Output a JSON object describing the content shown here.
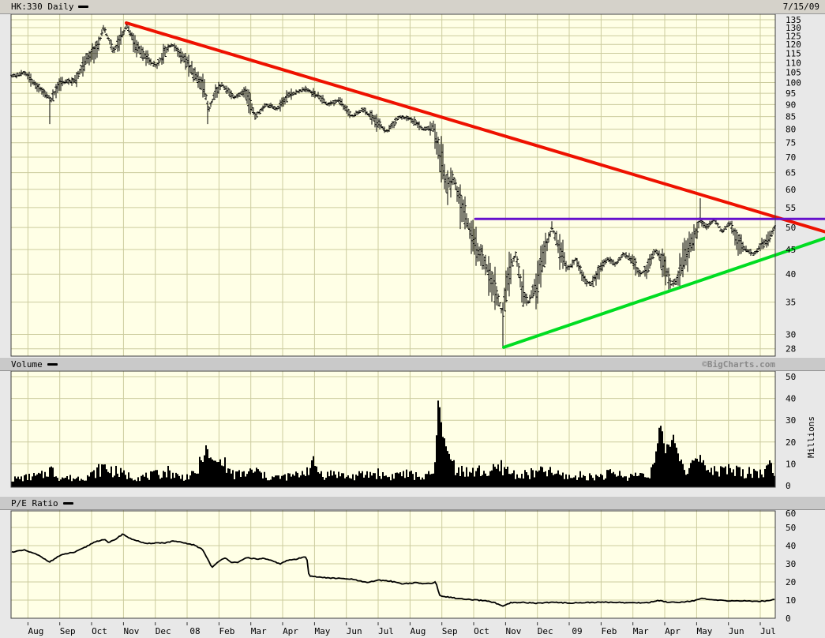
{
  "titlebar": {
    "symbol": "HK:330 Daily",
    "date": "7/15/09"
  },
  "volume_header": {
    "label": "Volume",
    "credit": "©BigCharts.com"
  },
  "pe_header": {
    "label": "P/E Ratio"
  },
  "axis": {
    "months": [
      "Aug",
      "Sep",
      "Oct",
      "Nov",
      "Dec",
      "08",
      "Feb",
      "Mar",
      "Apr",
      "May",
      "Jun",
      "Jul",
      "Aug",
      "Sep",
      "Oct",
      "Nov",
      "Dec",
      "09",
      "Feb",
      "Mar",
      "Apr",
      "May",
      "Jun",
      "Jul"
    ],
    "month_grid_offset": 0.53,
    "x_range_months": 24
  },
  "colors": {
    "background": "#e8e8e8",
    "plot_bg": "#ffffe6",
    "grid": "#cccc9e",
    "border": "#3f3f3f",
    "bar_black": "#000000",
    "trend_red": "#ee1100",
    "trend_green": "#00dd22",
    "trend_purple": "#6611cc",
    "credit_gray": "#8a8a8a",
    "header_bg": "#c9c9c9",
    "titlebar_bg": "#d5d2ca"
  },
  "chart_data": [
    {
      "type": "ohlc",
      "name": "price",
      "title": "HK:330 Daily",
      "yscale": "log",
      "ylim": [
        27,
        135
      ],
      "yticks": [
        135,
        130,
        125,
        120,
        115,
        110,
        105,
        100,
        95,
        90,
        85,
        80,
        75,
        70,
        65,
        60,
        55,
        50,
        45,
        40,
        35,
        30,
        28
      ],
      "close_anchors": [
        [
          0,
          103
        ],
        [
          0.4,
          105
        ],
        [
          0.8,
          98
        ],
        [
          1.1,
          94
        ],
        [
          1.25,
          92
        ],
        [
          1.5,
          100
        ],
        [
          2.0,
          101
        ],
        [
          2.4,
          113
        ],
        [
          2.7,
          118
        ],
        [
          2.88,
          130
        ],
        [
          3.2,
          116
        ],
        [
          3.45,
          125
        ],
        [
          3.62,
          131
        ],
        [
          3.9,
          120
        ],
        [
          4.25,
          112
        ],
        [
          4.55,
          108
        ],
        [
          4.9,
          118
        ],
        [
          5.05,
          120
        ],
        [
          5.4,
          112
        ],
        [
          5.75,
          104
        ],
        [
          6.05,
          97
        ],
        [
          6.2,
          88
        ],
        [
          6.4,
          95
        ],
        [
          6.6,
          99
        ],
        [
          7.0,
          93
        ],
        [
          7.35,
          96
        ],
        [
          7.66,
          85
        ],
        [
          8.0,
          90
        ],
        [
          8.35,
          88
        ],
        [
          8.7,
          94
        ],
        [
          9.25,
          97
        ],
        [
          9.6,
          94
        ],
        [
          9.95,
          90
        ],
        [
          10.3,
          92
        ],
        [
          10.7,
          85
        ],
        [
          11.05,
          88
        ],
        [
          11.45,
          83
        ],
        [
          11.8,
          79
        ],
        [
          12.2,
          85
        ],
        [
          12.55,
          84
        ],
        [
          12.95,
          80
        ],
        [
          13.25,
          81
        ],
        [
          13.5,
          70
        ],
        [
          13.7,
          61
        ],
        [
          13.9,
          63
        ],
        [
          14.15,
          55
        ],
        [
          14.4,
          50
        ],
        [
          14.65,
          45
        ],
        [
          14.9,
          42
        ],
        [
          15.15,
          38
        ],
        [
          15.45,
          33
        ],
        [
          15.65,
          40
        ],
        [
          15.85,
          44
        ],
        [
          16.05,
          37
        ],
        [
          16.25,
          35
        ],
        [
          16.5,
          38
        ],
        [
          16.75,
          44
        ],
        [
          17.0,
          50
        ],
        [
          17.25,
          45
        ],
        [
          17.5,
          41
        ],
        [
          17.75,
          43
        ],
        [
          18.0,
          39
        ],
        [
          18.25,
          38
        ],
        [
          18.5,
          41
        ],
        [
          18.75,
          43
        ],
        [
          19.0,
          42
        ],
        [
          19.25,
          44
        ],
        [
          19.5,
          43
        ],
        [
          19.75,
          40
        ],
        [
          20.0,
          41
        ],
        [
          20.25,
          45
        ],
        [
          20.5,
          42
        ],
        [
          20.75,
          38
        ],
        [
          20.95,
          39
        ],
        [
          21.2,
          44
        ],
        [
          21.5,
          48
        ],
        [
          21.65,
          52
        ],
        [
          21.85,
          50
        ],
        [
          22.1,
          52
        ],
        [
          22.35,
          49
        ],
        [
          22.6,
          51
        ],
        [
          22.85,
          47
        ],
        [
          23.1,
          45
        ],
        [
          23.35,
          44
        ],
        [
          23.6,
          46
        ],
        [
          23.8,
          47
        ],
        [
          24.0,
          50
        ]
      ],
      "spikes": [
        {
          "t": 1.19,
          "low": 82
        },
        {
          "t": 6.18,
          "low": 82
        },
        {
          "t": 15.45,
          "low": 28.3
        },
        {
          "t": 17.0,
          "high": 51.5
        },
        {
          "t": 21.65,
          "high": 57.5
        }
      ],
      "trendlines": [
        {
          "name": "descending-resistance",
          "color": "trend_red",
          "width": 4,
          "points": [
            [
              3.62,
              133
            ],
            [
              25.56,
              49
            ]
          ]
        },
        {
          "name": "ascending-support",
          "color": "trend_green",
          "width": 4,
          "points": [
            [
              15.47,
              28.2
            ],
            [
              25.56,
              47.5
            ]
          ]
        },
        {
          "name": "horizontal-resistance",
          "color": "trend_purple",
          "width": 3,
          "points": [
            [
              14.58,
              52.1
            ],
            [
              25.56,
              52.1
            ]
          ]
        }
      ]
    },
    {
      "type": "bar",
      "name": "volume",
      "ylabel": "Millions",
      "yticks": [
        0,
        10,
        20,
        30,
        40,
        50
      ],
      "samples": [
        [
          0,
          3
        ],
        [
          0.5,
          4
        ],
        [
          1.0,
          5
        ],
        [
          1.2,
          8
        ],
        [
          1.5,
          4
        ],
        [
          2,
          3.5
        ],
        [
          2.5,
          5
        ],
        [
          2.9,
          9
        ],
        [
          3.2,
          7
        ],
        [
          3.6,
          5
        ],
        [
          4,
          4
        ],
        [
          4.5,
          5
        ],
        [
          4.9,
          7
        ],
        [
          5.3,
          4
        ],
        [
          5.75,
          5
        ],
        [
          6.0,
          12
        ],
        [
          6.1,
          17
        ],
        [
          6.3,
          11
        ],
        [
          6.6,
          11
        ],
        [
          7,
          5
        ],
        [
          7.4,
          6
        ],
        [
          7.7,
          7
        ],
        [
          8,
          4
        ],
        [
          8.5,
          4
        ],
        [
          9,
          5
        ],
        [
          9.5,
          10
        ],
        [
          9.8,
          5
        ],
        [
          10.2,
          6
        ],
        [
          10.6,
          4
        ],
        [
          11,
          5
        ],
        [
          11.5,
          6
        ],
        [
          11.9,
          4
        ],
        [
          12.2,
          6
        ],
        [
          12.6,
          5
        ],
        [
          13,
          4
        ],
        [
          13.3,
          6
        ],
        [
          13.45,
          43
        ],
        [
          13.6,
          20
        ],
        [
          13.75,
          14
        ],
        [
          13.9,
          10
        ],
        [
          14.1,
          8
        ],
        [
          14.4,
          6
        ],
        [
          14.7,
          7
        ],
        [
          15,
          6
        ],
        [
          15.45,
          9
        ],
        [
          15.7,
          6
        ],
        [
          16,
          5
        ],
        [
          16.5,
          6
        ],
        [
          16.8,
          7
        ],
        [
          17,
          6
        ],
        [
          17.3,
          5
        ],
        [
          17.6,
          4
        ],
        [
          18,
          5
        ],
        [
          18.3,
          4
        ],
        [
          18.6,
          5
        ],
        [
          19,
          6
        ],
        [
          19.3,
          4
        ],
        [
          19.6,
          5
        ],
        [
          20,
          6
        ],
        [
          20.2,
          8
        ],
        [
          20.4,
          28
        ],
        [
          20.55,
          15
        ],
        [
          20.7,
          20
        ],
        [
          20.85,
          22
        ],
        [
          21,
          13
        ],
        [
          21.2,
          8
        ],
        [
          21.4,
          10
        ],
        [
          21.65,
          13
        ],
        [
          21.9,
          8
        ],
        [
          22.1,
          9
        ],
        [
          22.4,
          7
        ],
        [
          22.7,
          8
        ],
        [
          23,
          6
        ],
        [
          23.3,
          7
        ],
        [
          23.6,
          6
        ],
        [
          23.85,
          9
        ],
        [
          24,
          8
        ]
      ]
    },
    {
      "type": "line",
      "name": "pe_ratio",
      "yticks": [
        0,
        10,
        20,
        30,
        40,
        50,
        60
      ],
      "samples": [
        [
          0,
          36.5
        ],
        [
          0.4,
          37.5
        ],
        [
          0.8,
          35
        ],
        [
          1.2,
          31
        ],
        [
          1.45,
          34
        ],
        [
          1.7,
          35.5
        ],
        [
          2.0,
          36.5
        ],
        [
          2.3,
          39
        ],
        [
          2.6,
          42
        ],
        [
          2.9,
          43.5
        ],
        [
          3.05,
          41.5
        ],
        [
          3.3,
          44
        ],
        [
          3.5,
          46.5
        ],
        [
          3.7,
          44
        ],
        [
          3.9,
          43
        ],
        [
          4.2,
          41
        ],
        [
          4.5,
          41.5
        ],
        [
          4.8,
          41.5
        ],
        [
          5.1,
          42.5
        ],
        [
          5.4,
          41.5
        ],
        [
          5.7,
          40.5
        ],
        [
          6.0,
          38
        ],
        [
          6.15,
          33
        ],
        [
          6.3,
          28
        ],
        [
          6.5,
          31
        ],
        [
          6.7,
          33.5
        ],
        [
          6.9,
          31
        ],
        [
          7.1,
          30.5
        ],
        [
          7.4,
          33.5
        ],
        [
          7.7,
          32.5
        ],
        [
          7.9,
          33
        ],
        [
          8.2,
          31.5
        ],
        [
          8.45,
          30
        ],
        [
          8.7,
          32
        ],
        [
          8.95,
          32.5
        ],
        [
          9.15,
          33.5
        ],
        [
          9.28,
          34
        ],
        [
          9.35,
          23.5
        ],
        [
          9.7,
          22.5
        ],
        [
          10.2,
          22
        ],
        [
          10.7,
          21.5
        ],
        [
          11.2,
          19.5
        ],
        [
          11.5,
          21
        ],
        [
          11.9,
          20.5
        ],
        [
          12.3,
          19
        ],
        [
          12.7,
          19.5
        ],
        [
          13.0,
          19
        ],
        [
          13.25,
          19.5
        ],
        [
          13.35,
          20
        ],
        [
          13.45,
          12.5
        ],
        [
          13.8,
          11.5
        ],
        [
          14.2,
          10.5
        ],
        [
          14.6,
          10
        ],
        [
          15.0,
          9.5
        ],
        [
          15.2,
          8.5
        ],
        [
          15.45,
          6.5
        ],
        [
          15.7,
          8.5
        ],
        [
          16.1,
          8.7
        ],
        [
          16.5,
          8.3
        ],
        [
          17.0,
          8.8
        ],
        [
          17.5,
          8.4
        ],
        [
          18.0,
          8.6
        ],
        [
          18.5,
          8.8
        ],
        [
          19.0,
          8.8
        ],
        [
          19.5,
          8.5
        ],
        [
          20.0,
          8.6
        ],
        [
          20.35,
          9.8
        ],
        [
          20.6,
          9.0
        ],
        [
          21.0,
          8.8
        ],
        [
          21.4,
          9.5
        ],
        [
          21.7,
          10.8
        ],
        [
          22.0,
          10.2
        ],
        [
          22.3,
          9.8
        ],
        [
          22.7,
          9.6
        ],
        [
          23.0,
          9.6
        ],
        [
          23.4,
          9.3
        ],
        [
          23.7,
          9.5
        ],
        [
          24.0,
          10.4
        ]
      ]
    }
  ]
}
